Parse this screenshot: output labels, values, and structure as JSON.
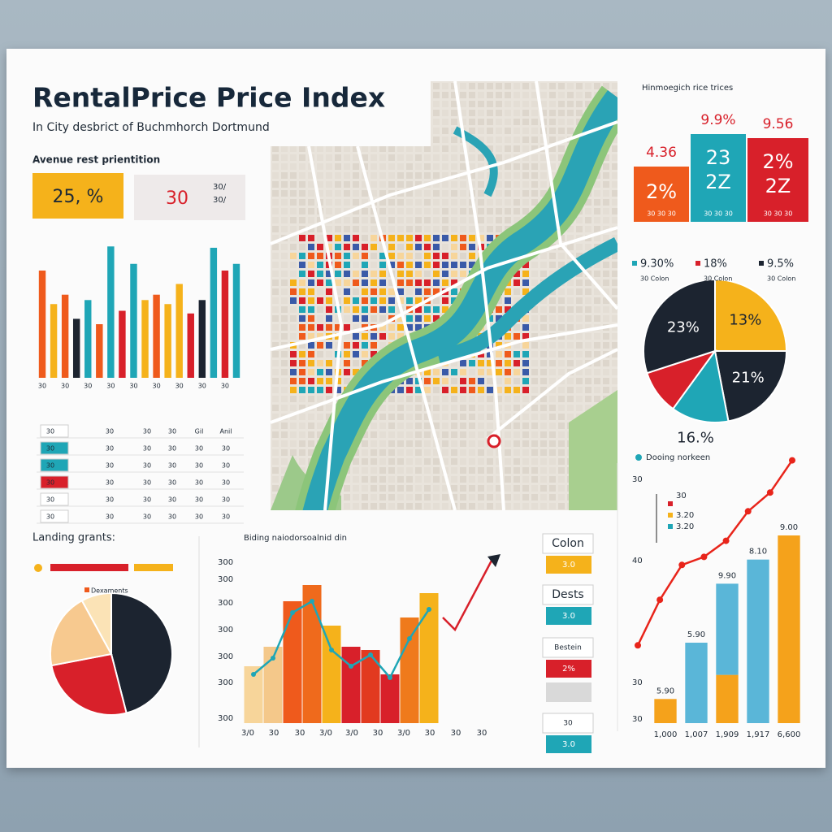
{
  "header": {
    "title": "RentalPrice Price Index",
    "subtitle": "In City desbrict of Buchmhorch Dortmund"
  },
  "kpi": {
    "label": "Avenue rest prientition",
    "primary": "25, %",
    "secondary": "30",
    "note": [
      "30/",
      "30/"
    ]
  },
  "prices": {
    "title": "Hinmoegich rice trices",
    "cards": [
      {
        "top": "4.36",
        "main": [
          "2%"
        ],
        "foot": "30 30 30",
        "color": "#ef5a1c"
      },
      {
        "top": "9.9%",
        "main": [
          "23",
          "2Z"
        ],
        "foot": "30 30 30",
        "color": "#1fa6b6"
      },
      {
        "top": "9.56",
        "main": [
          "2%",
          "2Z"
        ],
        "foot": "30 30 30",
        "color": "#d8202a"
      }
    ]
  },
  "table": {
    "rows": [
      [
        "30",
        "30",
        "30",
        "30",
        "Gil",
        "Anil"
      ],
      [
        "30",
        "30",
        "30",
        "30",
        "30",
        "30"
      ],
      [
        "30",
        "30",
        "30",
        "30",
        "30",
        "30"
      ],
      [
        "30",
        "30",
        "30",
        "30",
        "30",
        "30"
      ],
      [
        "30",
        "30",
        "30",
        "30",
        "30",
        "30"
      ],
      [
        "30",
        "30",
        "30",
        "30",
        "30",
        "30"
      ]
    ],
    "row_colors": [
      "#ffffff",
      "#1fa6b6",
      "#1fa6b6",
      "#d8202a",
      "#ffffff",
      "#ffffff"
    ]
  },
  "legend_panel": {
    "items": [
      {
        "label": "Colon",
        "value": "3.0",
        "color": "#f5b21b"
      },
      {
        "label": "Dests",
        "value": "3.0",
        "color": "#1fa6b6"
      },
      {
        "label": "Bestein",
        "value": "2%",
        "color": "#d8202a"
      },
      {
        "label": "30",
        "value": "3.0",
        "color": "#1fa6b6"
      }
    ]
  },
  "chart_data": [
    {
      "type": "bar",
      "categories": [
        "30",
        null,
        "30",
        null,
        "30",
        null,
        "30",
        null,
        "30",
        null,
        "30",
        null,
        "30",
        null,
        "30",
        null,
        "30",
        null
      ],
      "values": [
        80,
        55,
        62,
        44,
        58,
        40,
        98,
        50,
        85,
        58,
        62,
        55,
        70,
        48,
        58,
        97,
        80,
        85
      ],
      "colors": [
        "#ef5a1c",
        "#f5b21b",
        "#ef5a1c",
        "#1c2430",
        "#1fa6b6",
        "#ef5a1c",
        "#1fa6b6",
        "#d8202a",
        "#1fa6b6",
        "#f5b21b",
        "#ef5a1c",
        "#f5b21b",
        "#f5b21b",
        "#d8202a",
        "#1c2430",
        "#1fa6b6",
        "#d8202a",
        "#1fa6b6"
      ],
      "ylim": [
        0,
        100
      ]
    },
    {
      "type": "pie",
      "legend": [
        {
          "label": "9.30%",
          "sub": "30 Colon"
        },
        {
          "label": "18%",
          "sub": "30 Colon"
        },
        {
          "label": "9.5%",
          "sub": "30 Colon"
        }
      ],
      "values": [
        25,
        22,
        13,
        10,
        30
      ],
      "colors": [
        "#f5b21b",
        "#1c2430",
        "#1fa6b6",
        "#d8202a",
        "#1c2430"
      ],
      "annotations": [
        "13%",
        "21%",
        "16.%",
        "23%"
      ]
    },
    {
      "type": "pie",
      "title": "Landing grants:",
      "legend_label": "Dexaments",
      "values": [
        46,
        26,
        20,
        8
      ],
      "colors": [
        "#1c2430",
        "#d8202a",
        "#f7c98f",
        "#fbe3b6"
      ],
      "legend_bars": [
        "#d8202a",
        "#f5b21b"
      ]
    },
    {
      "type": "combo",
      "title": "Biding naiodorsoalnid din",
      "categories": [
        "3/0",
        "30",
        "30",
        "3/0",
        "3/0",
        "30",
        "3/0",
        "30",
        "30",
        "30"
      ],
      "values": [
        35,
        47,
        75,
        85,
        60,
        47,
        45,
        30,
        65,
        80
      ],
      "colors": [
        "#f7d59a",
        "#f4c88a",
        "#ef5a1c",
        "#ef6a1c",
        "#f5b21b",
        "#d8202a",
        "#e23a20",
        "#d8202a",
        "#ef7a1c",
        "#f5b21b"
      ],
      "line": {
        "color": "#1fa6b6",
        "values": [
          30,
          40,
          68,
          75,
          45,
          35,
          42,
          28,
          52,
          70
        ]
      },
      "y_labels": [
        "300",
        "300",
        "300",
        "300",
        "300",
        "300",
        "300"
      ],
      "ylim": [
        0,
        100
      ]
    },
    {
      "type": "stacked_bar",
      "title": "Dooing norkeen",
      "categories": [
        "1,000",
        "1,007",
        "1,909",
        "1,917",
        "6,600"
      ],
      "series": [
        {
          "color": "#f5a21b",
          "values": [
            9,
            null,
            18,
            null,
            70
          ]
        },
        {
          "color": "#5ab6d8",
          "values": [
            null,
            30,
            34,
            61,
            null
          ]
        }
      ],
      "annotations": [
        "5.90",
        "5.90",
        "9.90",
        "8.10",
        "9.00"
      ],
      "y_labels": [
        "30",
        "40",
        "30",
        "30"
      ],
      "legend": [
        "30",
        "3.20",
        "3.20"
      ],
      "ylim": [
        0,
        100
      ]
    },
    {
      "type": "line",
      "color": "#e8241a",
      "values": [
        29,
        46,
        59,
        62,
        68,
        79,
        86,
        98
      ],
      "ylim": [
        0,
        100
      ]
    }
  ]
}
